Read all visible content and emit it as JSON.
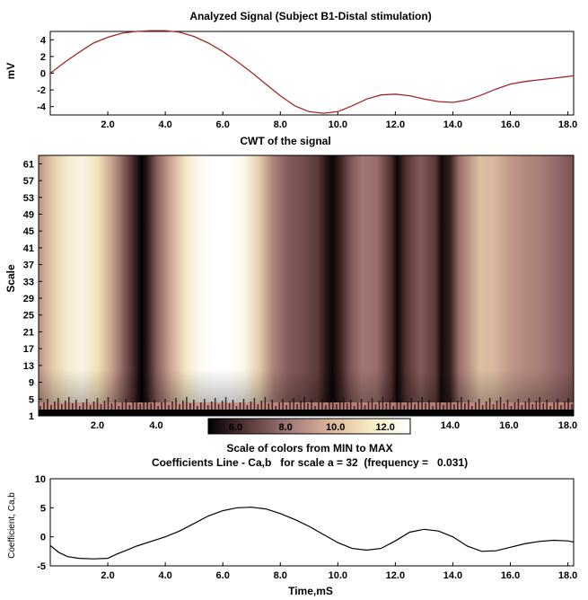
{
  "chart_data": [
    {
      "type": "line",
      "title": "Analyzed Signal (Subject B1-Distal stimulation)",
      "xlabel": "",
      "ylabel": "mV",
      "xlim": [
        0.0,
        18.2
      ],
      "ylim": [
        -5,
        5
      ],
      "xticks": [
        "2.0",
        "4.0",
        "6.0",
        "8.0",
        "10.0",
        "12.0",
        "14.0",
        "16.0",
        "18.0"
      ],
      "yticks": [
        "4",
        "2",
        "0",
        "-2",
        "-4"
      ],
      "color": "#a0282a",
      "series": [
        {
          "x": [
            0.0,
            0.5,
            1.0,
            1.5,
            2.0,
            2.5,
            3.0,
            3.5,
            4.0,
            4.5,
            5.0,
            5.5,
            6.0,
            6.5,
            7.0,
            7.5,
            8.0,
            8.5,
            9.0,
            9.5,
            10.0,
            10.5,
            11.0,
            11.5,
            12.0,
            12.5,
            13.0,
            13.5,
            14.0,
            14.5,
            15.0,
            15.5,
            16.0,
            16.5,
            17.0,
            17.5,
            18.0,
            18.2
          ],
          "y": [
            0.0,
            1.3,
            2.5,
            3.6,
            4.3,
            4.8,
            5.0,
            5.1,
            5.1,
            4.9,
            4.4,
            3.6,
            2.6,
            1.4,
            0.1,
            -1.3,
            -2.7,
            -3.9,
            -4.6,
            -4.8,
            -4.6,
            -3.9,
            -3.1,
            -2.6,
            -2.5,
            -2.7,
            -3.1,
            -3.4,
            -3.5,
            -3.2,
            -2.6,
            -1.9,
            -1.3,
            -1.0,
            -0.8,
            -0.6,
            -0.4,
            -0.3
          ]
        }
      ]
    },
    {
      "type": "heatmap",
      "title": "CWT of the signal",
      "xlabel": "",
      "ylabel": "Scale",
      "xlim": [
        0.0,
        18.2
      ],
      "ylim": [
        1,
        63
      ],
      "xticks": [
        "2.0",
        "4.0",
        "6.0",
        "8.0",
        "10.0",
        "12.0",
        "14.0",
        "16.0",
        "18.0"
      ],
      "yticks": [
        "61",
        "57",
        "53",
        "49",
        "45",
        "41",
        "37",
        "33",
        "29",
        "25",
        "21",
        "17",
        "13",
        "9",
        "5",
        "1"
      ],
      "columns_x": [
        0.0,
        0.5,
        1.0,
        1.5,
        2.0,
        2.5,
        3.0,
        3.3,
        3.5,
        3.7,
        4.0,
        4.5,
        5.0,
        5.5,
        6.0,
        6.5,
        7.0,
        7.5,
        8.0,
        8.5,
        9.0,
        9.5,
        9.8,
        10.0,
        10.3,
        10.6,
        11.0,
        11.5,
        12.0,
        12.2,
        12.5,
        13.0,
        13.5,
        13.7,
        14.0,
        14.3,
        15.0,
        15.5,
        16.0,
        16.5,
        17.0,
        17.5,
        18.0,
        18.2
      ],
      "intensity": [
        0.55,
        0.75,
        0.88,
        0.93,
        0.82,
        0.6,
        0.3,
        0.12,
        0.0,
        0.1,
        0.35,
        0.62,
        0.85,
        0.97,
        1.0,
        1.0,
        0.95,
        0.75,
        0.48,
        0.35,
        0.3,
        0.22,
        0.08,
        0.02,
        0.15,
        0.32,
        0.45,
        0.42,
        0.18,
        0.02,
        0.2,
        0.35,
        0.22,
        0.04,
        0.12,
        0.42,
        0.7,
        0.68,
        0.58,
        0.52,
        0.48,
        0.42,
        0.35,
        0.3
      ]
    },
    {
      "type": "colorbar",
      "title": "Scale of colors from MIN to MAX",
      "ticks": [
        "6.0",
        "8.0",
        "10.0",
        "12.0"
      ],
      "range": [
        4.9,
        13.0
      ],
      "colors": [
        "#000000",
        "#5a3a3a",
        "#a07878",
        "#dcb49a",
        "#f5ecc0",
        "#ffffff"
      ]
    },
    {
      "type": "line",
      "title": "Coefficients Line - Ca,b   for scale a = 32  (frequency =   0.031)",
      "xlabel": "Time,mS",
      "ylabel": "Coefficient, Ca,b",
      "xlim": [
        0.0,
        18.2
      ],
      "ylim": [
        -5,
        10
      ],
      "xticks": [
        "2.0",
        "4.0",
        "6.0",
        "8.0",
        "10.0",
        "12.0",
        "14.0",
        "16.0",
        "18.0"
      ],
      "yticks": [
        "10",
        "5",
        "0",
        "-5"
      ],
      "color": "#000000",
      "series": [
        {
          "x": [
            0.0,
            0.3,
            0.6,
            1.0,
            1.5,
            2.0,
            2.3,
            2.7,
            3.0,
            3.5,
            4.0,
            4.5,
            5.0,
            5.5,
            6.0,
            6.5,
            7.0,
            7.5,
            8.0,
            8.5,
            9.0,
            9.5,
            10.0,
            10.5,
            11.0,
            11.5,
            12.0,
            12.5,
            13.0,
            13.5,
            14.0,
            14.5,
            15.0,
            15.5,
            16.0,
            16.5,
            17.0,
            17.5,
            18.0,
            18.2
          ],
          "y": [
            -1.5,
            -2.7,
            -3.4,
            -3.7,
            -3.8,
            -3.7,
            -3.0,
            -2.2,
            -1.6,
            -0.8,
            0.0,
            1.0,
            2.3,
            3.6,
            4.5,
            5.0,
            5.1,
            4.8,
            4.0,
            3.0,
            1.8,
            0.4,
            -1.0,
            -2.0,
            -2.3,
            -2.0,
            -0.7,
            0.8,
            1.3,
            1.0,
            0.0,
            -1.6,
            -2.5,
            -2.4,
            -1.8,
            -1.2,
            -0.8,
            -0.6,
            -0.7,
            -0.9
          ]
        }
      ]
    }
  ]
}
